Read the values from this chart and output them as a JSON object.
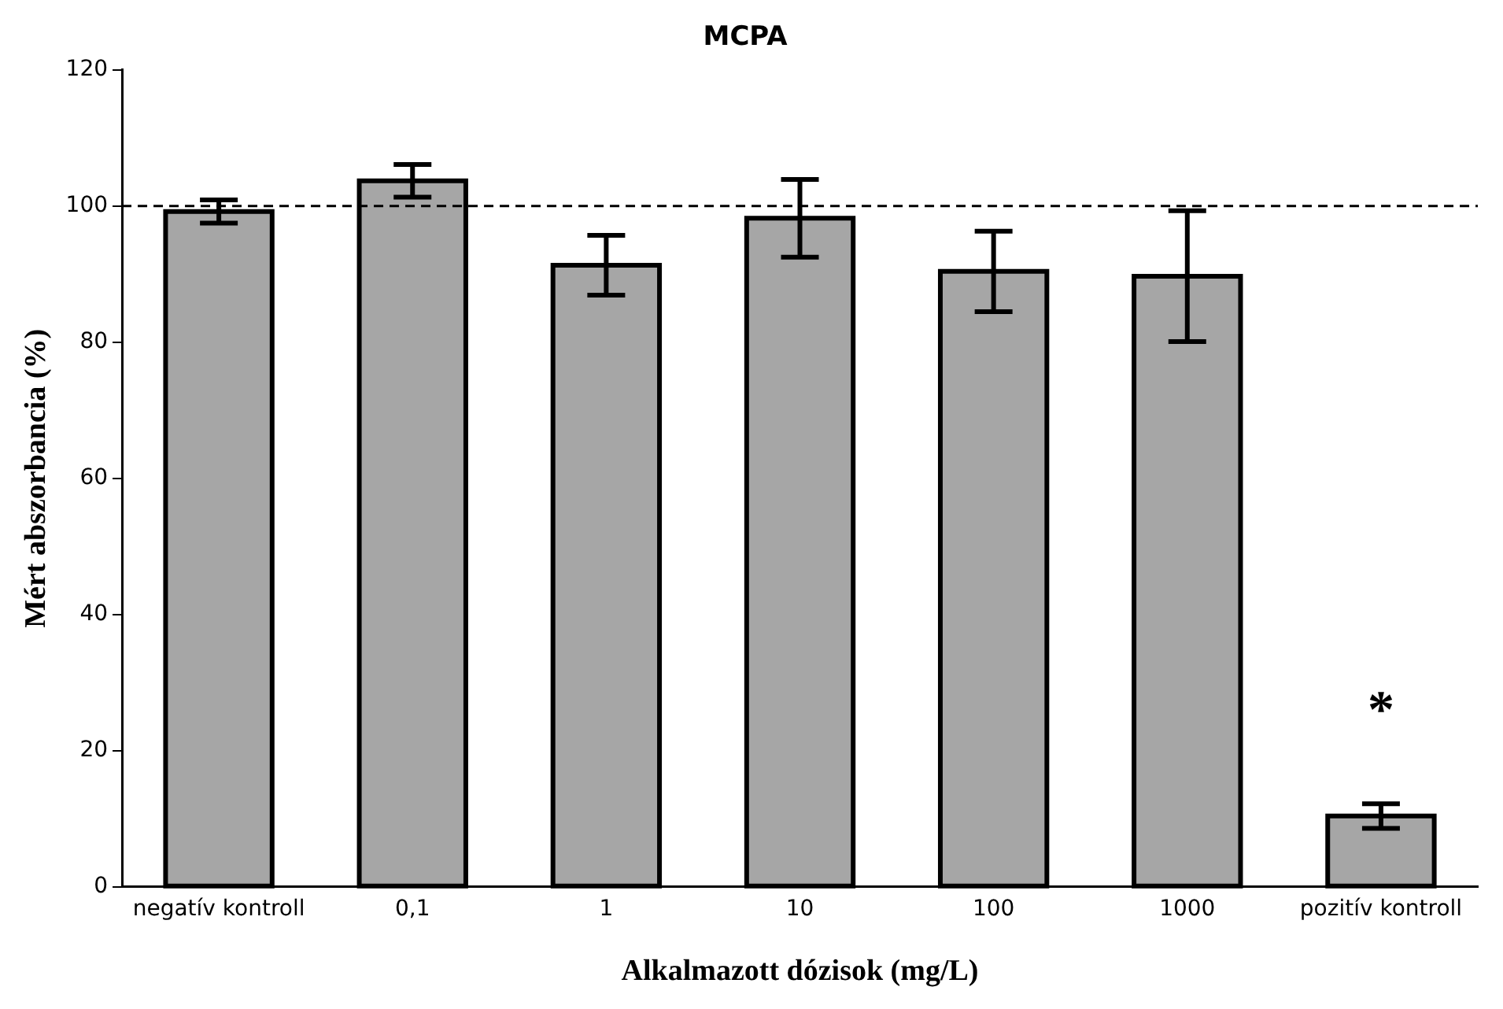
{
  "chart_data": {
    "type": "bar",
    "title": "MCPA",
    "xlabel": "Alkalmazott dózisok (mg/L)",
    "ylabel": "Mért abszorbancia (%)",
    "categories": [
      "negatív kontroll",
      "0,1",
      "1",
      "10",
      "100",
      "1000",
      "pozitív kontroll"
    ],
    "values": [
      99.2,
      103.7,
      91.3,
      98.2,
      90.4,
      89.7,
      10.4
    ],
    "errors": [
      1.7,
      2.4,
      4.4,
      5.7,
      5.9,
      9.6,
      1.8
    ],
    "color": "#a6a6a6",
    "ylim": [
      0,
      120
    ],
    "yticks": [
      0,
      20,
      40,
      60,
      80,
      100,
      120
    ],
    "grid": false,
    "legend": false,
    "ref_lines": [
      {
        "axis": "y",
        "value": 100,
        "color": "#000000",
        "line_style": "dashed"
      }
    ],
    "annotations": [
      "*"
    ]
  }
}
